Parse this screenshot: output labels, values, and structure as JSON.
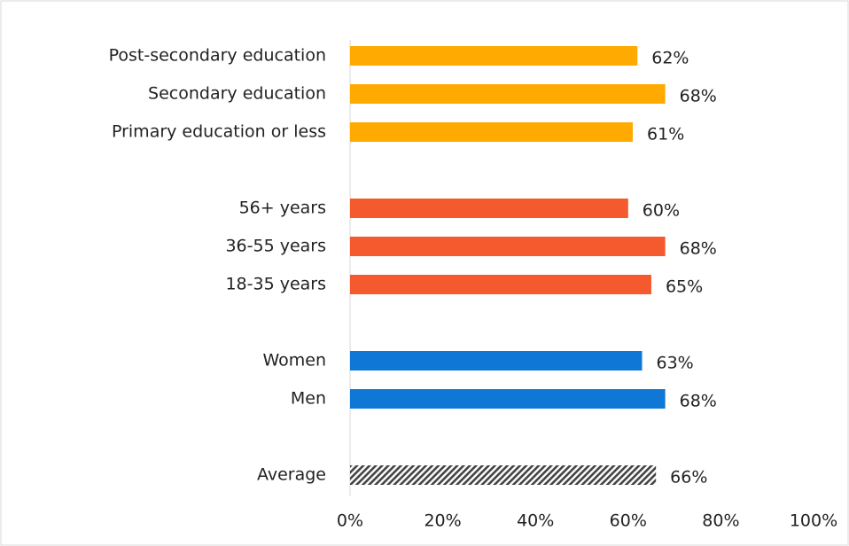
{
  "chart_data": {
    "type": "hbar",
    "categories": [
      "Post-secondary education",
      "Secondary education",
      "Primary education or less",
      null,
      "56+ years",
      "36-55 years",
      "18-35 years",
      null,
      "Women",
      "Men",
      null,
      "Average"
    ],
    "values": [
      62,
      68,
      61,
      null,
      60,
      68,
      65,
      null,
      63,
      68,
      null,
      66
    ],
    "value_labels": [
      "62%",
      "68%",
      "61%",
      null,
      "60%",
      "68%",
      "65%",
      null,
      "63%",
      "68%",
      null,
      "66%"
    ],
    "colors": [
      "#FFAA00",
      "#FFAA00",
      "#FFAA00",
      null,
      "#F45A2D",
      "#F45A2D",
      "#F45A2D",
      null,
      "#0F77D6",
      "#0F77D6",
      null,
      "#444444"
    ],
    "hatched": [
      false,
      false,
      false,
      false,
      false,
      false,
      false,
      false,
      false,
      false,
      false,
      true
    ],
    "xlim": [
      0,
      100
    ],
    "xticks": [
      {
        "value": 0,
        "label": "0%"
      },
      {
        "value": 20,
        "label": "20%"
      },
      {
        "value": 40,
        "label": "40%"
      },
      {
        "value": 60,
        "label": "60%"
      },
      {
        "value": 80,
        "label": "80%"
      },
      {
        "value": 100,
        "label": "100%"
      }
    ],
    "grid": false
  }
}
